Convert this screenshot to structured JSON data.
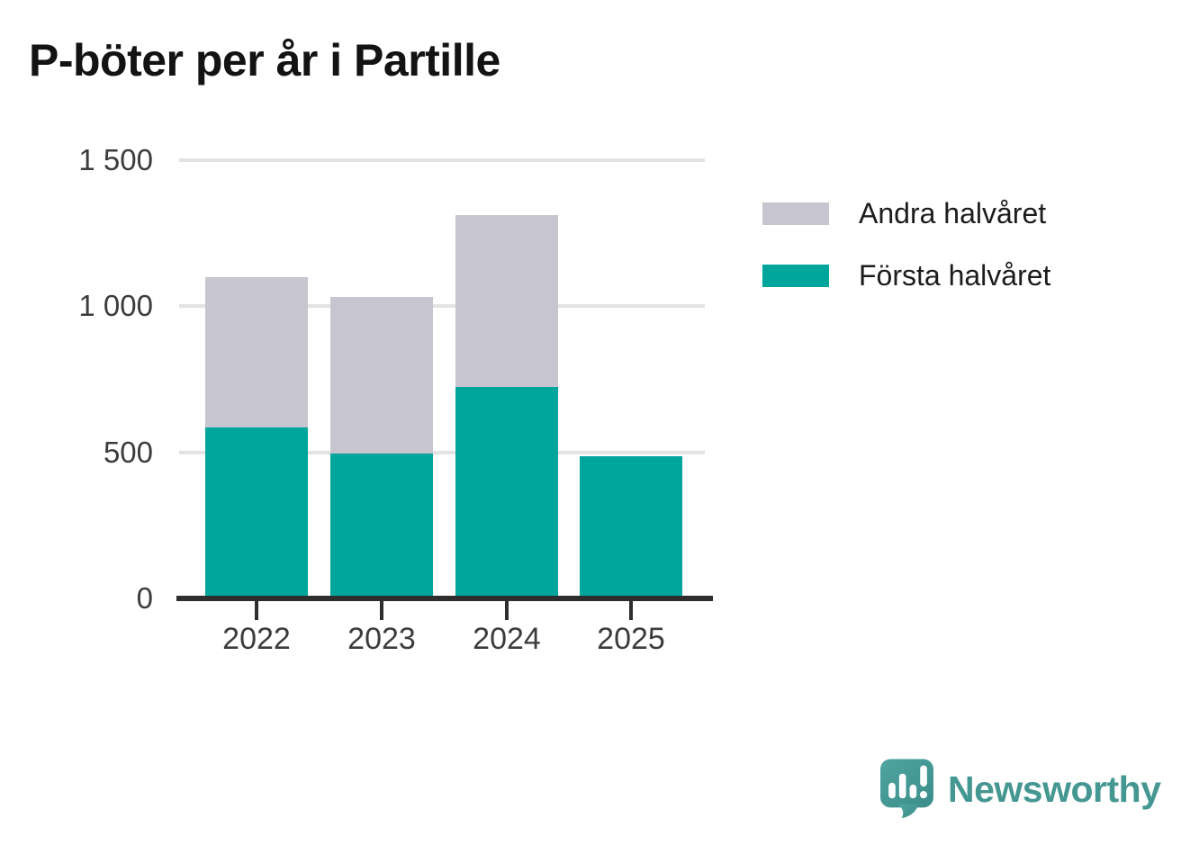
{
  "title": "P-böter per år i Partille",
  "chart_data": {
    "type": "bar",
    "stacked": true,
    "title": "P-böter per år i Partille",
    "categories": [
      "2022",
      "2023",
      "2024",
      "2025"
    ],
    "series": [
      {
        "name": "Första halvåret",
        "color": "#00a69c",
        "values": [
          582,
          492,
          721,
          483
        ]
      },
      {
        "name": "Andra halvåret",
        "color": "#c7c5d0",
        "values": [
          513,
          536,
          587,
          0
        ]
      }
    ],
    "totals": [
      1095,
      1028,
      1308,
      483
    ],
    "xlabel": "",
    "ylabel": "",
    "ylim": [
      0,
      1500
    ],
    "yticks": [
      0,
      500,
      1000,
      1500
    ],
    "ytick_labels": [
      "0",
      "500",
      "1 000",
      "1 500"
    ],
    "grid": true,
    "legend_position": "right"
  },
  "legend": {
    "items": [
      {
        "label": "Andra halvåret",
        "color": "#c7c5d0"
      },
      {
        "label": "Första halvåret",
        "color": "#00a69c"
      }
    ]
  },
  "branding": {
    "name": "Newsworthy",
    "icon": "newsworthy-speech-bubble-chart-icon",
    "text_color": "#459792",
    "icon_color": "#4a9e99"
  }
}
